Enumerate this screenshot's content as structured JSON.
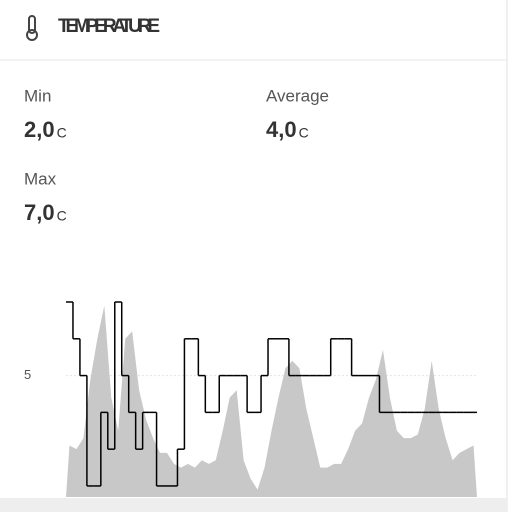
{
  "header": {
    "title": "TEMPERATURE"
  },
  "stats": [
    {
      "label": "Min",
      "value": "2,0",
      "unit": "C"
    },
    {
      "label": "Average",
      "value": "4,0",
      "unit": "C"
    },
    {
      "label": "Max",
      "value": "7,0",
      "unit": "C"
    }
  ],
  "chart_data": {
    "type": "line",
    "step": true,
    "ylim": [
      1.7,
      7
    ],
    "yticks": [
      5
    ],
    "grid": true,
    "series": [
      {
        "color": "#c8c8c8",
        "area": true,
        "values": [
          3.1,
          3.0,
          3.3,
          4.9,
          6.0,
          6.9,
          4.4,
          3.5,
          6.0,
          6.2,
          4.6,
          3.8,
          3.3,
          2.9,
          2.9,
          2.6,
          2.5,
          2.6,
          2.5,
          2.7,
          2.6,
          2.7,
          3.5,
          4.4,
          4.6,
          2.7,
          2.2,
          1.9,
          2.5,
          3.5,
          4.4,
          5.2,
          5.4,
          5.2,
          4.1,
          3.3,
          2.5,
          2.5,
          2.6,
          2.6,
          3.0,
          3.5,
          3.7,
          4.4,
          4.9,
          5.7,
          4.4,
          3.5,
          3.3,
          3.3,
          3.4,
          4.1,
          5.4,
          4.1,
          3.3,
          2.7,
          2.9,
          3.0,
          3.1
        ]
      },
      {
        "color": "#000000",
        "values": [
          7,
          6,
          5,
          2,
          2,
          4,
          3,
          7,
          5,
          4,
          3,
          4,
          4,
          2,
          2,
          2,
          3,
          6,
          6,
          5,
          4,
          4,
          5,
          5,
          5,
          5,
          4,
          4,
          5,
          6,
          6,
          6,
          5,
          5,
          5,
          5,
          5,
          5,
          6,
          6,
          6,
          5,
          5,
          5,
          5,
          4,
          4,
          4,
          4,
          4,
          4,
          4,
          4,
          4,
          4,
          4,
          4,
          4,
          4
        ]
      }
    ]
  }
}
